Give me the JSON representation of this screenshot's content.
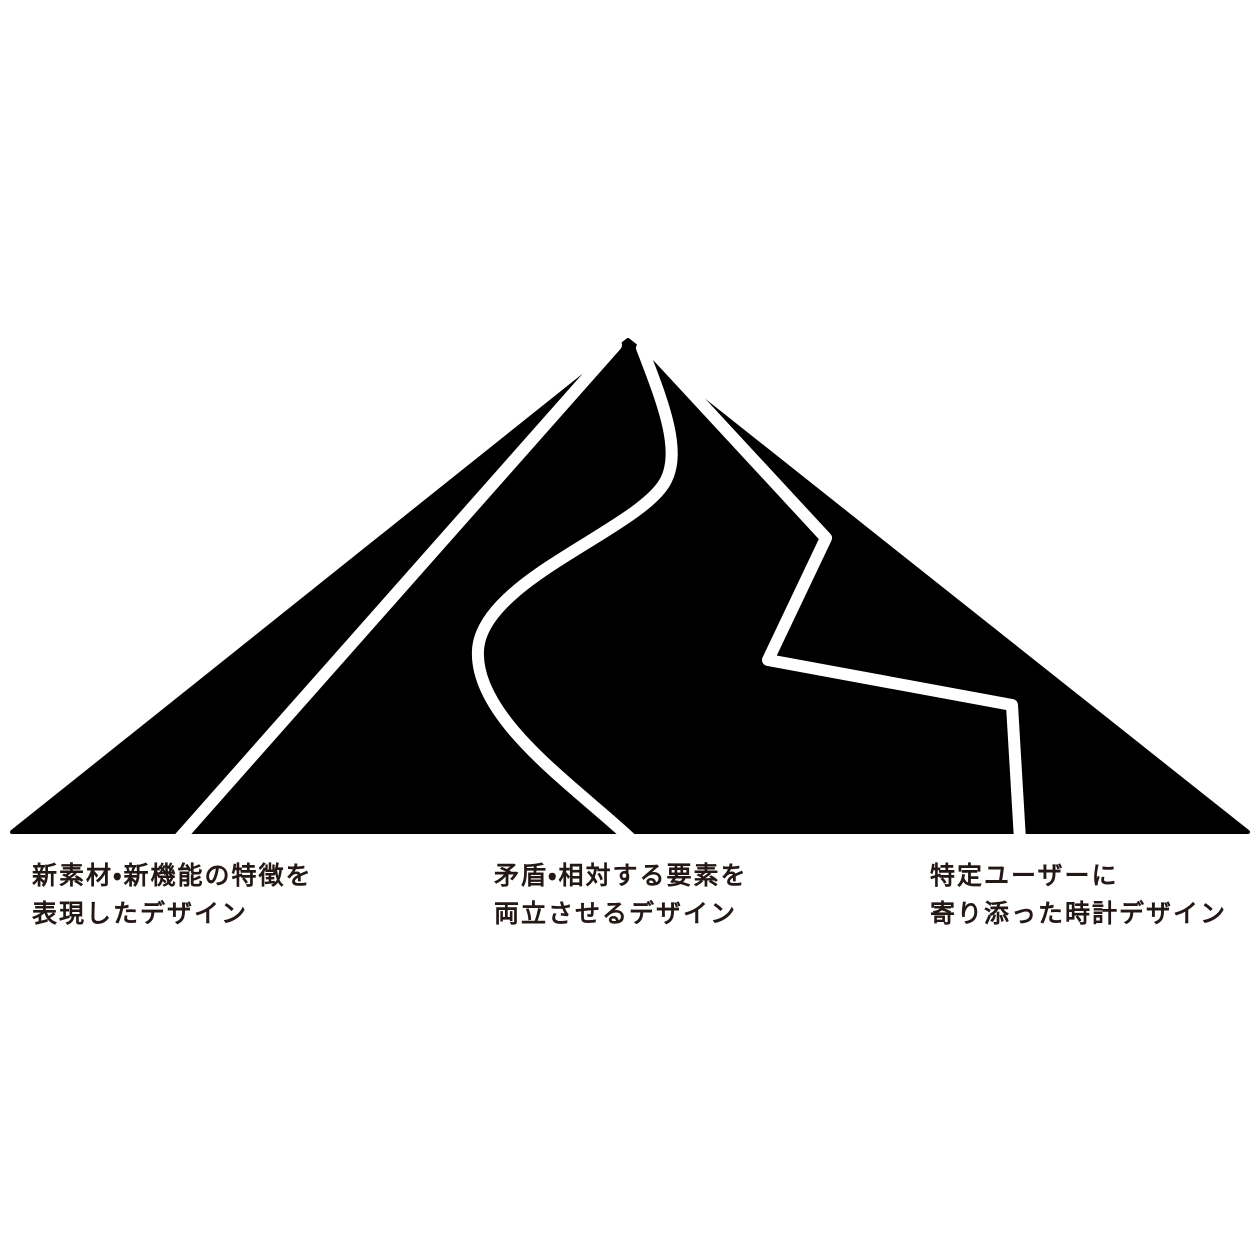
{
  "captions": [
    {
      "lines": [
        "新素材・新機能の特徴を",
        "表現したデザイン"
      ]
    },
    {
      "lines": [
        "矛盾・相対する要素を",
        "両立させるデザイン"
      ]
    },
    {
      "lines": [
        "特定ユーザーに",
        "寄り添った時計デザイン"
      ]
    }
  ]
}
